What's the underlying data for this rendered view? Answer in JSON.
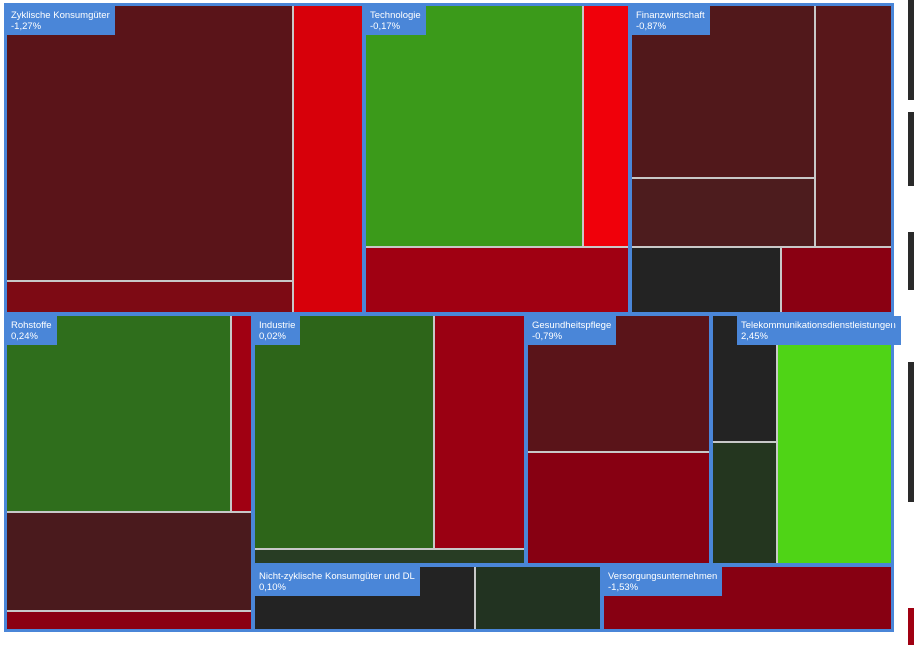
{
  "colors": {
    "frame": "#4a86d8",
    "label_bg": "#4a86d8",
    "label_text": "#ffffff",
    "tile_border": "#c8c8c8"
  },
  "chart_data": {
    "type": "treemap",
    "title": "",
    "sectors": [
      {
        "name": "Zyklische Konsumgüter",
        "change": "-1,27%",
        "tiles": [
          "#5a1419",
          "#d7000a",
          "#7d0a14"
        ]
      },
      {
        "name": "Technologie",
        "change": "-0,17%",
        "tiles": [
          "#3b9a1a",
          "#f0000a",
          "#a00012"
        ]
      },
      {
        "name": "Finanzwirtschaft",
        "change": "-0,87%",
        "tiles": [
          "#51181b",
          "#58171a",
          "#4d1c1e",
          "#232323",
          "#8a0012"
        ]
      },
      {
        "name": "Rohstoffe",
        "change": "0,24%",
        "tiles": [
          "#2f6e1c",
          "#a00012",
          "#4a1a1d",
          "#8a0012"
        ]
      },
      {
        "name": "Industrie",
        "change": "0,02%",
        "tiles": [
          "#2d6519",
          "#9a0012",
          "#283d24"
        ]
      },
      {
        "name": "Gesundheitspflege",
        "change": "-0,79%",
        "tiles": [
          "#5a1419",
          "#870012",
          "#232323",
          "#24361f"
        ]
      },
      {
        "name": "Telekommunikationsdienstleistungen",
        "change": "2,45%",
        "tiles": [
          "#4fd416"
        ]
      },
      {
        "name": "Nicht-zyklische Konsumgüter und DL",
        "change": "0,10%",
        "tiles": [
          "#232323",
          "#223321"
        ]
      },
      {
        "name": "Versorgungsunternehmen",
        "change": "-1,53%",
        "tiles": [
          "#870012"
        ]
      }
    ]
  }
}
